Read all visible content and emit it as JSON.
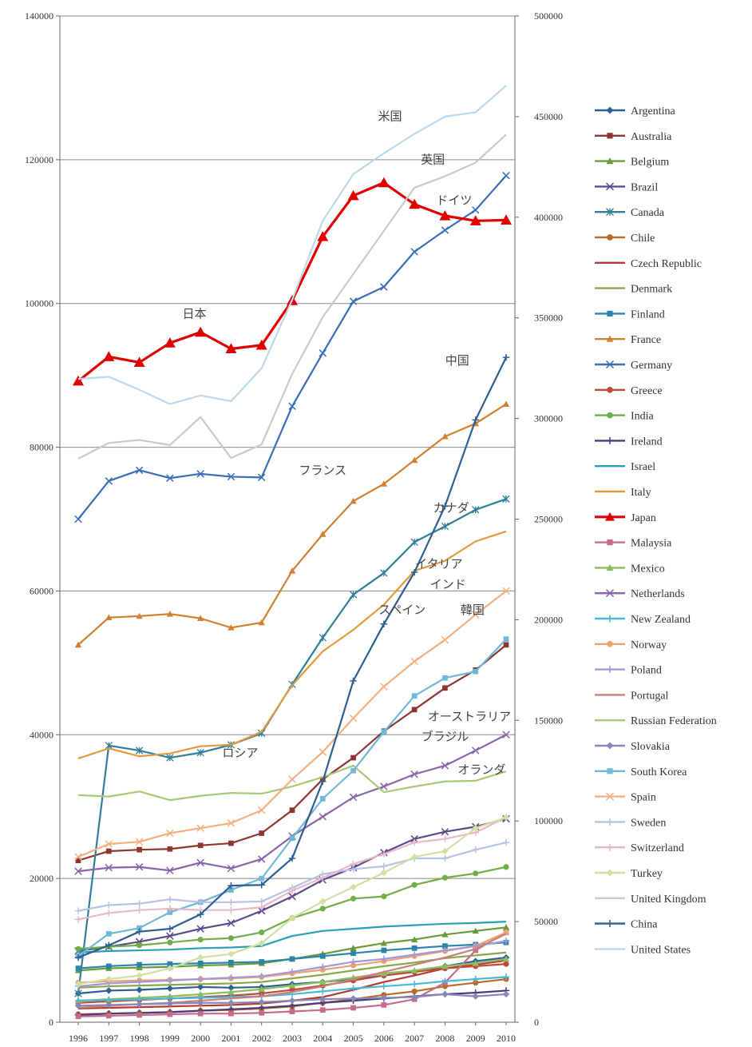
{
  "chart_data": {
    "type": "line",
    "title": "",
    "xlabel": "",
    "ylabel": "",
    "y2label": "",
    "categories": [
      1996,
      1997,
      1998,
      1999,
      2000,
      2001,
      2002,
      2003,
      2004,
      2005,
      2006,
      2007,
      2008,
      2009,
      2010
    ],
    "ylim": [
      0,
      140000
    ],
    "y2lim": [
      0,
      500000
    ],
    "y_ticks": [
      0,
      20000,
      40000,
      60000,
      80000,
      100000,
      120000,
      140000
    ],
    "y2_ticks": [
      0,
      50000,
      100000,
      150000,
      200000,
      250000,
      300000,
      350000,
      400000,
      450000,
      500000
    ],
    "grid": true,
    "legend_position": "right",
    "annotations": [
      {
        "text": "米国",
        "x": 2006.2,
        "y": 125500
      },
      {
        "text": "英国",
        "x": 2007.6,
        "y": 119500
      },
      {
        "text": "ドイツ",
        "x": 2008.3,
        "y": 113800
      },
      {
        "text": "日本",
        "x": 1999.8,
        "y": 98000
      },
      {
        "text": "中国",
        "x": 2008.4,
        "y": 91500
      },
      {
        "text": "フランス",
        "x": 2004,
        "y": 76200
      },
      {
        "text": "カナダ",
        "x": 2008.2,
        "y": 71000
      },
      {
        "text": "イタリア",
        "x": 2007.8,
        "y": 63200
      },
      {
        "text": "インド",
        "x": 2008.1,
        "y": 60400
      },
      {
        "text": "スペイン",
        "x": 2006.6,
        "y": 56800
      },
      {
        "text": "韓国",
        "x": 2008.9,
        "y": 56800
      },
      {
        "text": "オーストラリア",
        "x": 2008.8,
        "y": 42000
      },
      {
        "text": "ブラジル",
        "x": 2008,
        "y": 39200
      },
      {
        "text": "ロシア",
        "x": 2001.3,
        "y": 36900
      },
      {
        "text": "オランダ",
        "x": 2009.2,
        "y": 34600
      }
    ],
    "series": [
      {
        "name": "Argentina",
        "color": "#2e5f95",
        "marker": "diamond",
        "values": [
          4000,
          4400,
          4500,
          4700,
          4900,
          4800,
          4900,
          5300,
          5600,
          6000,
          6500,
          7000,
          7800,
          8500,
          9000
        ]
      },
      {
        "name": "Australia",
        "color": "#8e3532",
        "marker": "square",
        "values": [
          22500,
          23800,
          24000,
          24100,
          24600,
          24900,
          26300,
          29500,
          33800,
          36800,
          40500,
          43500,
          46500,
          49000,
          52500
        ]
      },
      {
        "name": "Belgium",
        "color": "#6a9a3a",
        "marker": "triangle",
        "values": [
          7200,
          7500,
          7600,
          7700,
          7900,
          8000,
          8200,
          8800,
          9500,
          10300,
          11000,
          11500,
          12200,
          12700,
          13200
        ]
      },
      {
        "name": "Brazil",
        "color": "#5b4a8b",
        "marker": "x",
        "values": [
          9900,
          10500,
          11200,
          12000,
          13000,
          13800,
          15500,
          17500,
          19800,
          21500,
          23600,
          25500,
          26500,
          27200,
          28300
        ]
      },
      {
        "name": "Canada",
        "color": "#2f7f9a",
        "marker": "star",
        "values": [
          4000,
          38500,
          37800,
          36800,
          37500,
          38600,
          40200,
          47000,
          53500,
          59500,
          62500,
          66800,
          69000,
          71300,
          72800
        ]
      },
      {
        "name": "Chile",
        "color": "#b66b2a",
        "marker": "circle",
        "values": [
          1100,
          1200,
          1300,
          1400,
          1600,
          1700,
          1900,
          2200,
          2700,
          3200,
          3800,
          4300,
          5000,
          5500,
          6000
        ]
      },
      {
        "name": "Czech Republic",
        "color": "#b43a32",
        "marker": "line",
        "values": [
          1900,
          2000,
          2100,
          2200,
          2300,
          2400,
          2600,
          3000,
          3500,
          4500,
          5600,
          6500,
          7500,
          8000,
          8600
        ]
      },
      {
        "name": "Denmark",
        "color": "#88a84a",
        "marker": "line",
        "values": [
          4800,
          5000,
          5100,
          5200,
          5300,
          5400,
          5600,
          6100,
          6600,
          7200,
          7800,
          8300,
          8900,
          9300,
          9700
        ]
      },
      {
        "name": "Finland",
        "color": "#2a86a8",
        "marker": "square",
        "values": [
          7500,
          7800,
          8000,
          8100,
          8200,
          8300,
          8400,
          8800,
          9200,
          9600,
          10000,
          10300,
          10600,
          10800,
          11100
        ]
      },
      {
        "name": "France",
        "color": "#d08030",
        "marker": "triangle",
        "values": [
          52500,
          56300,
          56500,
          56800,
          56200,
          54900,
          55600,
          62800,
          67900,
          72500,
          74900,
          78200,
          81500,
          83300,
          86000
        ]
      },
      {
        "name": "Germany",
        "color": "#3a6db8",
        "marker": "x",
        "values": [
          70000,
          75300,
          76800,
          75700,
          76300,
          75900,
          75800,
          85700,
          93100,
          100300,
          102300,
          107200,
          110200,
          113000,
          117800
        ]
      },
      {
        "name": "Greece",
        "color": "#c04a3a",
        "marker": "circle",
        "values": [
          2700,
          2900,
          3100,
          3300,
          3500,
          3700,
          4000,
          4500,
          5100,
          5800,
          6500,
          7000,
          7500,
          7800,
          8100
        ]
      },
      {
        "name": "India",
        "color": "#70ad47",
        "marker": "circle",
        "values": [
          10200,
          10500,
          10700,
          11100,
          11500,
          11700,
          12500,
          14500,
          15800,
          17200,
          17500,
          19100,
          20100,
          20700,
          21600
        ]
      },
      {
        "name": "Ireland",
        "color": "#4a3c7a",
        "marker": "plus",
        "values": [
          1000,
          1200,
          1300,
          1400,
          1600,
          1800,
          2000,
          2300,
          2700,
          3000,
          3300,
          3600,
          3900,
          4100,
          4400
        ]
      },
      {
        "name": "Israel",
        "color": "#2aa0b8",
        "marker": "line",
        "values": [
          9700,
          9900,
          10000,
          10100,
          10300,
          10400,
          10600,
          12000,
          12700,
          13000,
          13300,
          13500,
          13700,
          13800,
          14000
        ]
      },
      {
        "name": "Italy",
        "color": "#e39a3c",
        "marker": "line",
        "values": [
          36700,
          38100,
          37000,
          37400,
          38400,
          38600,
          40400,
          46900,
          51600,
          54600,
          58100,
          62800,
          64200,
          66900,
          68300
        ]
      },
      {
        "name": "Japan",
        "color": "#e00000",
        "marker": "triangle",
        "values": [
          89200,
          92600,
          91800,
          94500,
          96000,
          93700,
          94200,
          100400,
          109300,
          115000,
          116800,
          113800,
          112200,
          111500,
          111600
        ]
      },
      {
        "name": "Malaysia",
        "color": "#c86a8a",
        "marker": "square",
        "values": [
          800,
          900,
          1000,
          1100,
          1200,
          1200,
          1300,
          1500,
          1700,
          2000,
          2400,
          3200,
          5500,
          10000,
          12500
        ]
      },
      {
        "name": "Mexico",
        "color": "#8bbf5a",
        "marker": "triangle",
        "values": [
          3000,
          3200,
          3400,
          3600,
          3900,
          4200,
          4600,
          5100,
          5600,
          6200,
          6800,
          7200,
          7800,
          8200,
          8800
        ]
      },
      {
        "name": "Netherlands",
        "color": "#8a63a8",
        "marker": "x",
        "values": [
          21000,
          21500,
          21600,
          21100,
          22200,
          21400,
          22700,
          25900,
          28600,
          31300,
          32800,
          34500,
          35700,
          37800,
          40000
        ]
      },
      {
        "name": "New Zealand",
        "color": "#4ab8d8",
        "marker": "plus",
        "values": [
          3000,
          3100,
          3200,
          3300,
          3400,
          3500,
          3600,
          3900,
          4300,
          4700,
          5000,
          5300,
          5700,
          6000,
          6300
        ]
      },
      {
        "name": "Norway",
        "color": "#f0a070",
        "marker": "circle",
        "values": [
          5500,
          5700,
          5800,
          5900,
          6000,
          6100,
          6300,
          6800,
          7300,
          7900,
          8500,
          9200,
          9900,
          10600,
          12500
        ]
      },
      {
        "name": "Poland",
        "color": "#a098d8",
        "marker": "plus",
        "values": [
          5000,
          5400,
          5600,
          5800,
          6000,
          6200,
          6400,
          7000,
          7700,
          8400,
          8800,
          9400,
          10000,
          10600,
          11300
        ]
      },
      {
        "name": "Portugal",
        "color": "#c8807a",
        "marker": "line",
        "values": [
          2000,
          2300,
          2500,
          2700,
          3000,
          3300,
          3600,
          4200,
          5000,
          6000,
          7000,
          8000,
          9000,
          10200,
          12300
        ]
      },
      {
        "name": "Russian Federation",
        "color": "#a8c878",
        "marker": "line",
        "values": [
          31600,
          31400,
          32100,
          30900,
          31500,
          31900,
          31800,
          32800,
          34100,
          35700,
          32000,
          32800,
          33500,
          33600,
          34900
        ]
      },
      {
        "name": "Slovakia",
        "color": "#8888b8",
        "marker": "diamond",
        "values": [
          2300,
          2400,
          2500,
          2600,
          2700,
          2700,
          2800,
          3000,
          3200,
          3300,
          3400,
          3500,
          3900,
          3600,
          3900
        ]
      },
      {
        "name": "South Korea",
        "color": "#70b8d8",
        "marker": "square",
        "values": [
          9200,
          12300,
          13100,
          15300,
          16700,
          18400,
          20000,
          25600,
          31100,
          35000,
          40400,
          45400,
          47900,
          48800,
          53300
        ]
      },
      {
        "name": "Spain",
        "color": "#f4b080",
        "marker": "x",
        "values": [
          23000,
          24800,
          25100,
          26300,
          27000,
          27700,
          29500,
          33800,
          37600,
          42300,
          46700,
          50200,
          53200,
          56700,
          60000
        ]
      },
      {
        "name": "Sweden",
        "color": "#b8c0e8",
        "marker": "plus",
        "values": [
          15500,
          16300,
          16500,
          17100,
          16700,
          16700,
          16800,
          18700,
          20600,
          21300,
          21700,
          22800,
          22800,
          24000,
          25000
        ]
      },
      {
        "name": "Switzerland",
        "color": "#e8b8c8",
        "marker": "plus",
        "values": [
          14300,
          15200,
          15600,
          15800,
          15600,
          15600,
          16000,
          18300,
          20100,
          22000,
          23400,
          25000,
          25500,
          26400,
          28500
        ]
      },
      {
        "name": "Turkey",
        "color": "#d0e0a0",
        "marker": "diamond",
        "values": [
          5300,
          6000,
          6500,
          7500,
          9000,
          9500,
          11000,
          14500,
          16800,
          18800,
          20800,
          23000,
          23800,
          27000,
          28500
        ]
      },
      {
        "name": "United Kingdom",
        "color": "#c8c8d0",
        "marker": "line",
        "values": [
          78400,
          80600,
          81000,
          80300,
          84200,
          78500,
          80400,
          90200,
          98100,
          104100,
          110100,
          116100,
          117700,
          119600,
          123500
        ]
      },
      {
        "name": "China",
        "color": "#2c5f90",
        "marker": "plus",
        "values": [
          9000,
          10700,
          12600,
          13000,
          15000,
          19000,
          19100,
          22800,
          33500,
          47500,
          55400,
          62600,
          71800,
          83800,
          92500
        ]
      },
      {
        "name": "United States",
        "color": "#bcd8ea",
        "marker": "line",
        "values": [
          89500,
          89800,
          88000,
          86000,
          87200,
          86400,
          91000,
          100500,
          111500,
          118000,
          120900,
          123600,
          126000,
          126600,
          130300
        ]
      }
    ]
  }
}
